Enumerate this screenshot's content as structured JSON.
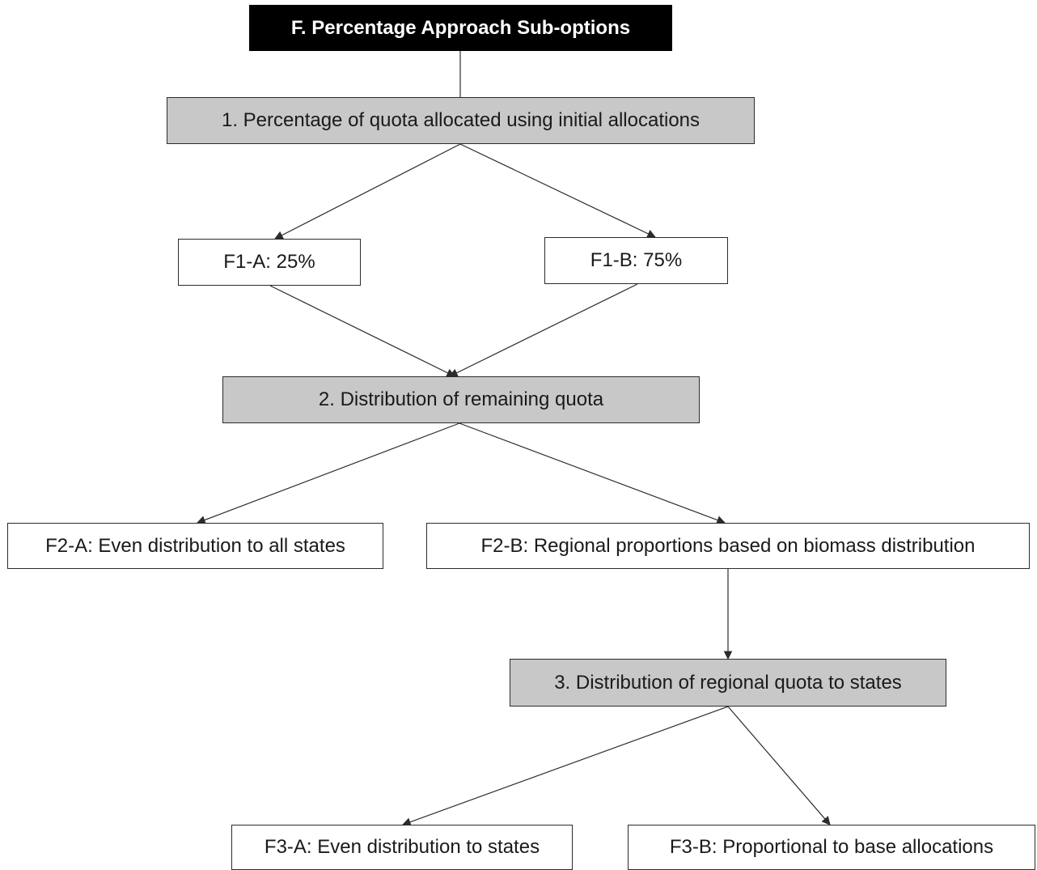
{
  "diagram": {
    "title": "F. Percentage Approach Sub-options",
    "steps": [
      "1. Percentage of quota allocated using initial allocations",
      "2. Distribution of remaining quota",
      "3. Distribution of regional quota to states"
    ],
    "options": {
      "f1a": "F1-A: 25%",
      "f1b": "F1-B: 75%",
      "f2a": "F2-A: Even distribution to all states",
      "f2b": "F2-B: Regional proportions based on biomass distribution",
      "f3a": "F3-A: Even distribution to states",
      "f3b": "F3-B: Proportional to base allocations"
    },
    "colors": {
      "title_bg": "#000000",
      "step_bg": "#c8c8c8",
      "option_bg": "#ffffff",
      "line": "#2b2b2b"
    }
  }
}
